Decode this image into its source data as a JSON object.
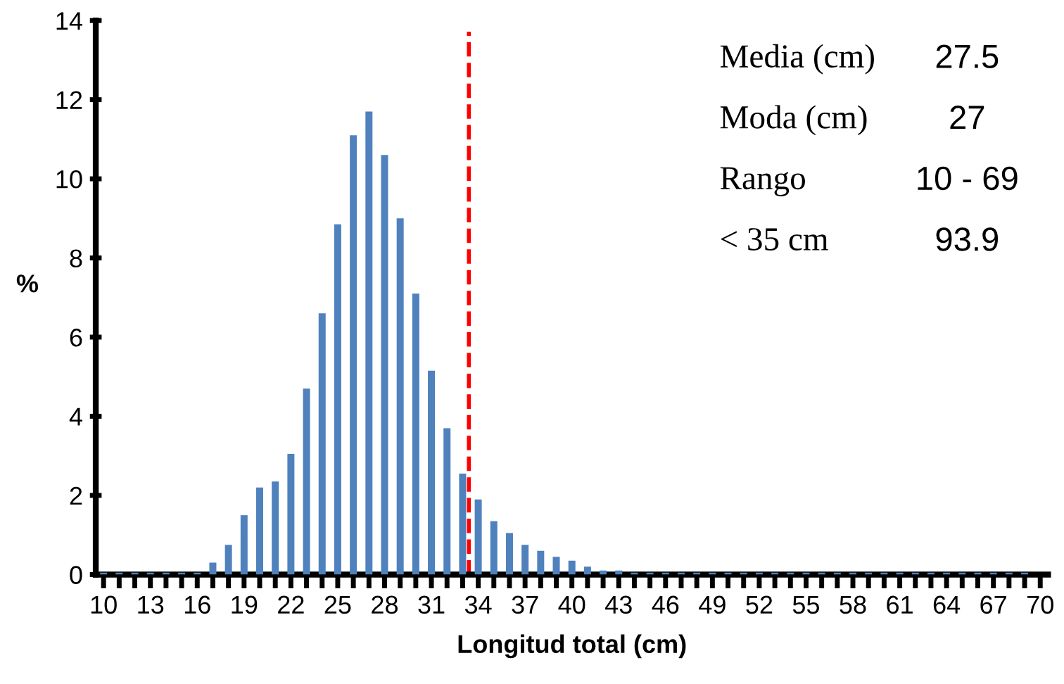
{
  "chart_data": {
    "type": "bar",
    "xlabel": "Longitud total (cm)",
    "ylabel": "%",
    "x": [
      10,
      11,
      12,
      13,
      14,
      15,
      16,
      17,
      18,
      19,
      20,
      21,
      22,
      23,
      24,
      25,
      26,
      27,
      28,
      29,
      30,
      31,
      32,
      33,
      34,
      35,
      36,
      37,
      38,
      39,
      40,
      41,
      42,
      43,
      44,
      45,
      46,
      47,
      48,
      49,
      50,
      51,
      52,
      53,
      54,
      55,
      56,
      57,
      58,
      59,
      60,
      61,
      62,
      63,
      64,
      65,
      66,
      67,
      68,
      69,
      70
    ],
    "values": [
      0.05,
      0.05,
      0.05,
      0.05,
      0.05,
      0.05,
      0.05,
      0.3,
      0.75,
      1.5,
      2.2,
      2.35,
      3.05,
      4.7,
      6.6,
      8.85,
      11.1,
      11.7,
      10.6,
      9.0,
      7.1,
      5.15,
      3.7,
      2.55,
      1.9,
      1.35,
      1.05,
      0.75,
      0.6,
      0.45,
      0.35,
      0.2,
      0.1,
      0.1,
      0.05,
      0.05,
      0.05,
      0.05,
      0.05,
      0.05,
      0.05,
      0.05,
      0.05,
      0.05,
      0.05,
      0.05,
      0.05,
      0.05,
      0.05,
      0.05,
      0.05,
      0.05,
      0.05,
      0.05,
      0.05,
      0.05,
      0.05,
      0.05,
      0.05,
      0.05,
      0
    ],
    "color": "#4f81bd",
    "xlim": [
      9.5,
      70.5
    ],
    "xticks": [
      10,
      {
        "value": 11,
        "label": null
      },
      {
        "value": 12,
        "label": null
      },
      13,
      {
        "value": 14,
        "label": null
      },
      {
        "value": 15,
        "label": null
      },
      16,
      {
        "value": 17,
        "label": null
      },
      {
        "value": 18,
        "label": null
      },
      19,
      {
        "value": 20,
        "label": null
      },
      {
        "value": 21,
        "label": null
      },
      22,
      {
        "value": 23,
        "label": null
      },
      {
        "value": 24,
        "label": null
      },
      25,
      {
        "value": 26,
        "label": null
      },
      {
        "value": 27,
        "label": null
      },
      28,
      {
        "value": 29,
        "label": null
      },
      {
        "value": 30,
        "label": null
      },
      31,
      {
        "value": 32,
        "label": null
      },
      {
        "value": 33,
        "label": null
      },
      34,
      {
        "value": 35,
        "label": null
      },
      {
        "value": 36,
        "label": null
      },
      37,
      {
        "value": 38,
        "label": null
      },
      {
        "value": 39,
        "label": null
      },
      40,
      {
        "value": 41,
        "label": null
      },
      {
        "value": 42,
        "label": null
      },
      43,
      {
        "value": 44,
        "label": null
      },
      {
        "value": 45,
        "label": null
      },
      46,
      {
        "value": 47,
        "label": null
      },
      {
        "value": 48,
        "label": null
      },
      49,
      {
        "value": 50,
        "label": null
      },
      {
        "value": 51,
        "label": null
      },
      52,
      {
        "value": 53,
        "label": null
      },
      {
        "value": 54,
        "label": null
      },
      55,
      {
        "value": 56,
        "label": null
      },
      {
        "value": 57,
        "label": null
      },
      58,
      {
        "value": 59,
        "label": null
      },
      {
        "value": 60,
        "label": null
      },
      61,
      {
        "value": 62,
        "label": null
      },
      {
        "value": 63,
        "label": null
      },
      64,
      {
        "value": 65,
        "label": null
      },
      {
        "value": 66,
        "label": null
      },
      67,
      {
        "value": 68,
        "label": null
      },
      {
        "value": 69,
        "label": null
      },
      70
    ],
    "ylim": [
      0,
      14
    ],
    "yticks": [
      0,
      2,
      4,
      6,
      8,
      10,
      12,
      14
    ],
    "ref_lines": [
      {
        "axis": "x",
        "value": 33.4,
        "color": "#ff0000",
        "line_style": "dashed"
      }
    ],
    "annotations": [
      "Media (cm)",
      "27.5",
      "Moda (cm)",
      "27",
      "Rango",
      "10 - 69",
      "< 35 cm",
      "93.9"
    ],
    "grid": false,
    "legend": false
  }
}
